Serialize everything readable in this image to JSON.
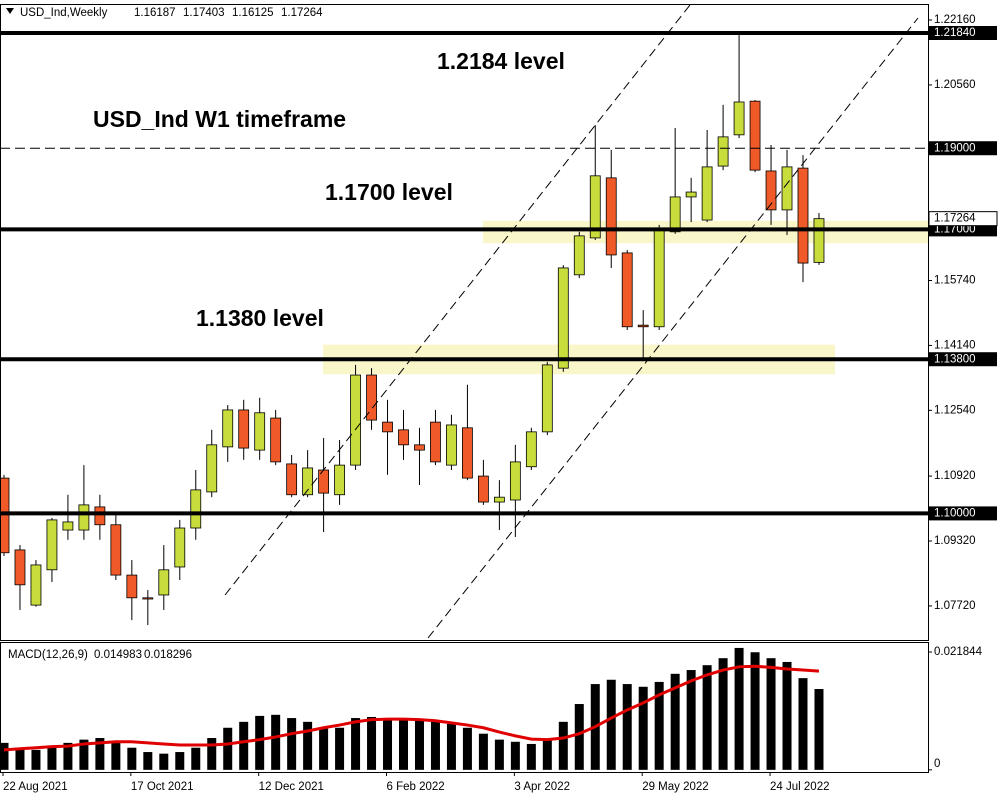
{
  "chart_data": [
    {
      "type": "candlestick",
      "title": "USD_Ind,Weekly",
      "annotations": [
        "1.2184 level",
        "USD_Ind W1 timeframe",
        "1.1700 level",
        "1.1380 level"
      ],
      "categories": [
        "22 Aug 2021",
        null,
        null,
        null,
        null,
        null,
        null,
        null,
        "17 Oct 2021",
        null,
        null,
        null,
        null,
        null,
        null,
        null,
        "12 Dec 2021",
        null,
        null,
        null,
        null,
        null,
        null,
        null,
        "6 Feb 2022",
        null,
        null,
        null,
        null,
        null,
        null,
        null,
        "3 Apr 2022",
        null,
        null,
        null,
        null,
        null,
        null,
        null,
        "29 May 2022",
        null,
        null,
        null,
        null,
        null,
        null,
        null,
        "24 Jul 2022",
        null,
        null,
        null
      ],
      "open": [
        1.1087,
        1.091,
        1.0774,
        1.0861,
        1.0959,
        1.0959,
        1.1016,
        1.0972,
        1.0848,
        1.0792,
        1.0799,
        1.0868,
        1.0964,
        1.1053,
        1.1164,
        1.1255,
        1.1156,
        1.1235,
        1.1122,
        1.1046,
        1.1107,
        1.1046,
        1.1119,
        1.1341,
        1.1225,
        1.1206,
        1.1169,
        1.1225,
        1.1119,
        1.1211,
        1.1092,
        1.1028,
        1.1033,
        1.1115,
        1.1201,
        1.1358,
        1.1588,
        1.1679,
        1.1827,
        1.1642,
        1.1464,
        1.146,
        1.1694,
        1.178,
        1.1723,
        1.1856,
        1.1933,
        1.2016,
        1.1844,
        1.1748,
        1.1851,
        1.16187
      ],
      "high": [
        1.1095,
        1.0922,
        1.0885,
        1.0989,
        1.1046,
        1.1119,
        1.1046,
        1.0996,
        1.0885,
        1.0811,
        1.0922,
        1.0984,
        1.1107,
        1.1206,
        1.1267,
        1.128,
        1.1285,
        1.1255,
        1.1144,
        1.1156,
        1.1186,
        1.1181,
        1.1366,
        1.1358,
        1.128,
        1.1255,
        1.1211,
        1.1255,
        1.1243,
        1.1317,
        1.1132,
        1.1082,
        1.1169,
        1.1211,
        1.1373,
        1.1612,
        1.1694,
        1.1957,
        1.1896,
        1.1649,
        1.1501,
        1.1711,
        1.195,
        1.1827,
        1.1945,
        1.2007,
        1.2179,
        1.2019,
        1.1908,
        1.1896,
        1.1883,
        1.17403
      ],
      "low": [
        1.0895,
        1.0762,
        1.077,
        1.0831,
        1.0935,
        1.0935,
        1.0935,
        1.0836,
        1.0737,
        1.0725,
        1.0762,
        1.0836,
        1.0935,
        1.104,
        1.1127,
        1.1132,
        1.1132,
        1.1119,
        1.104,
        1.104,
        1.0954,
        1.1021,
        1.1107,
        1.1206,
        1.1095,
        1.1132,
        1.107,
        1.1119,
        1.1107,
        1.1082,
        1.1021,
        1.0959,
        1.0942,
        1.1107,
        1.1193,
        1.1349,
        1.158,
        1.1674,
        1.1605,
        1.1452,
        1.1383,
        1.1452,
        1.1689,
        1.1718,
        1.1718,
        1.1846,
        1.1925,
        1.1841,
        1.1711,
        1.1686,
        1.157,
        1.16125
      ],
      "close": [
        1.0903,
        1.0824,
        1.0873,
        1.0984,
        1.0979,
        1.1021,
        1.0972,
        1.0848,
        1.0792,
        1.0789,
        1.0861,
        1.0964,
        1.1058,
        1.1169,
        1.1255,
        1.1161,
        1.1248,
        1.1127,
        1.1046,
        1.1112,
        1.105,
        1.1119,
        1.1341,
        1.123,
        1.1201,
        1.1169,
        1.1156,
        1.1127,
        1.1218,
        1.1087,
        1.1028,
        1.104,
        1.1127,
        1.1201,
        1.1366,
        1.1605,
        1.1684,
        1.1832,
        1.1637,
        1.146,
        1.146,
        1.1699,
        1.178,
        1.1792,
        1.1854,
        1.1928,
        1.2014,
        1.1846,
        1.1748,
        1.1854,
        1.1617,
        1.17264
      ],
      "up_color": "#c8dc3c",
      "down_color": "#f05a28",
      "ylim": [
        1.0688,
        1.2253
      ],
      "yticks": [
        {
          "value": 1.2216,
          "label": "1.22160"
        },
        {
          "value": 1.2056,
          "label": "1.20560"
        },
        {
          "value": 1.1574,
          "label": "1.15740"
        },
        {
          "value": 1.1414,
          "label": "1.14140"
        },
        {
          "value": 1.1254,
          "label": "1.12540"
        },
        {
          "value": 1.1092,
          "label": "1.10920"
        },
        {
          "value": 1.0932,
          "label": "1.09320"
        },
        {
          "value": 1.0772,
          "label": "1.07720"
        }
      ],
      "levels": [
        {
          "value": 1.2184,
          "label": "1.21840",
          "style": "solid"
        },
        {
          "value": 1.19,
          "label": "1.19000",
          "style": "dashed"
        },
        {
          "value": 1.17,
          "label": "1.17000",
          "style": "solid"
        },
        {
          "value": 1.138,
          "label": "1.13800",
          "style": "solid"
        },
        {
          "value": 1.1,
          "label": "1.10000",
          "style": "solid"
        }
      ],
      "zones": [
        [
          1.1666,
          1.1721
        ],
        [
          1.1343,
          1.1416
        ]
      ]
    },
    {
      "type": "macd",
      "title": "MACD(12,26,9)",
      "series": [
        {
          "type": "bar",
          "color": "#000000",
          "values": [
            0.005,
            0.0041,
            0.0037,
            0.0044,
            0.005,
            0.0056,
            0.0059,
            0.0052,
            0.0041,
            0.0033,
            0.003,
            0.0033,
            0.0041,
            0.0059,
            0.0078,
            0.0089,
            0.01,
            0.0102,
            0.0096,
            0.0089,
            0.0078,
            0.0078,
            0.0096,
            0.0098,
            0.0096,
            0.0096,
            0.0091,
            0.0089,
            0.0085,
            0.0078,
            0.0067,
            0.0056,
            0.0052,
            0.0048,
            0.0056,
            0.0089,
            0.0122,
            0.0159,
            0.0167,
            0.0159,
            0.0154,
            0.0163,
            0.0178,
            0.0185,
            0.0194,
            0.0207,
            0.0226,
            0.0218,
            0.0207,
            0.02,
            0.017,
            0.014983
          ]
        },
        {
          "type": "line",
          "color": "#e00000",
          "values": [
            0.0037,
            0.0039,
            0.0041,
            0.0043,
            0.0044,
            0.0048,
            0.005,
            0.0052,
            0.0052,
            0.005,
            0.0048,
            0.0046,
            0.0046,
            0.0046,
            0.0048,
            0.0052,
            0.0056,
            0.0061,
            0.0067,
            0.0072,
            0.0078,
            0.0083,
            0.0089,
            0.0093,
            0.0094,
            0.0094,
            0.0093,
            0.0091,
            0.0087,
            0.0083,
            0.0078,
            0.007,
            0.0063,
            0.0057,
            0.0056,
            0.0059,
            0.0067,
            0.008,
            0.0096,
            0.0111,
            0.0124,
            0.0139,
            0.0152,
            0.0165,
            0.0176,
            0.0185,
            0.0191,
            0.0192,
            0.019,
            0.0187,
            0.0185,
            0.018296
          ]
        }
      ],
      "ylim": [
        -0.0004,
        0.0237
      ],
      "yticks": [
        0.021844,
        0
      ]
    }
  ]
}
